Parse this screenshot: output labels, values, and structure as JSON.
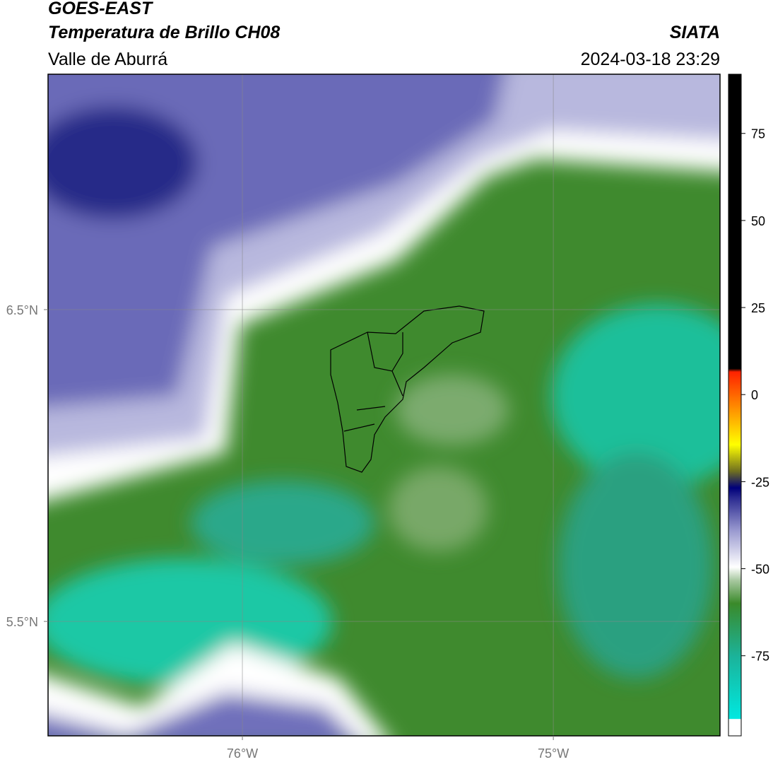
{
  "header": {
    "title": "GOES-EAST",
    "subtitle": "Temperatura de Brillo CH08",
    "region": "Valle de Aburrá",
    "source": "SIATA",
    "datetime": "2024-03-18 23:29"
  },
  "map": {
    "lonlim": [
      -76.625,
      -74.464
    ],
    "latlim": [
      5.133,
      7.255
    ],
    "lon_ticks": [
      {
        "value": -76,
        "label": "76°W"
      },
      {
        "value": -75,
        "label": "75°W"
      }
    ],
    "lat_ticks": [
      {
        "value": 6.5,
        "label": "6.5°N"
      },
      {
        "value": 5.5,
        "label": "5.5°N"
      }
    ]
  },
  "colorbar": {
    "lim": [
      -98,
      92
    ],
    "ticks": [
      75,
      50,
      25,
      0,
      -25,
      -50,
      -75
    ]
  }
}
